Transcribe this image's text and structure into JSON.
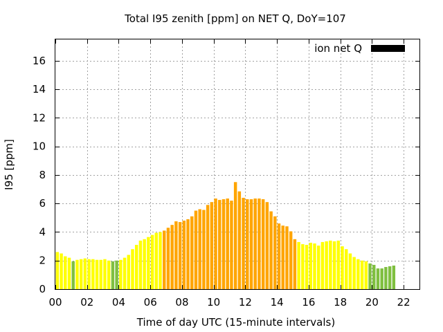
{
  "chart_data": {
    "type": "bar",
    "title": "Total I95 zenith [ppm] on NET Q, DoY=107",
    "xlabel": "Time of day UTC (15-minute intervals)",
    "ylabel": "I95 [ppm]",
    "xlim": [
      0,
      23
    ],
    "ylim": [
      0,
      17.5
    ],
    "x_ticks": [
      "00",
      "02",
      "04",
      "06",
      "08",
      "10",
      "12",
      "14",
      "16",
      "18",
      "20",
      "22"
    ],
    "y_ticks": [
      "0",
      "2",
      "4",
      "6",
      "8",
      "10",
      "12",
      "14",
      "16"
    ],
    "grid": true,
    "legend": {
      "placement": "top-right",
      "entries": [
        {
          "name": "ion net Q",
          "color": "#000000"
        }
      ]
    },
    "bar_colors": {
      "green": "#7fbf3f",
      "yellow": "#ffff00",
      "orange": "#ffa500"
    },
    "interval_hours": 0.25,
    "values": [
      2.6,
      2.5,
      2.3,
      2.2,
      1.95,
      2.05,
      2.1,
      2.15,
      2.1,
      2.1,
      2.05,
      2.05,
      2.1,
      2.0,
      1.95,
      2.0,
      2.05,
      2.2,
      2.4,
      2.8,
      3.1,
      3.4,
      3.5,
      3.65,
      3.8,
      3.95,
      4.0,
      4.1,
      4.3,
      4.5,
      4.75,
      4.7,
      4.8,
      4.9,
      5.1,
      5.5,
      5.6,
      5.55,
      5.9,
      6.1,
      6.35,
      6.25,
      6.3,
      6.35,
      6.2,
      7.5,
      6.85,
      6.4,
      6.3,
      6.3,
      6.35,
      6.35,
      6.3,
      6.1,
      5.45,
      5.1,
      4.6,
      4.45,
      4.4,
      4.05,
      3.5,
      3.3,
      3.15,
      3.1,
      3.25,
      3.2,
      3.05,
      3.3,
      3.35,
      3.4,
      3.35,
      3.4,
      3.0,
      2.8,
      2.5,
      2.25,
      2.1,
      2.0,
      1.95,
      1.8,
      1.7,
      1.45,
      1.45,
      1.55,
      1.6,
      1.65
    ],
    "colors": [
      "yellow",
      "yellow",
      "yellow",
      "yellow",
      "green",
      "yellow",
      "yellow",
      "yellow",
      "yellow",
      "yellow",
      "yellow",
      "yellow",
      "yellow",
      "yellow",
      "green",
      "green",
      "yellow",
      "yellow",
      "yellow",
      "yellow",
      "yellow",
      "yellow",
      "yellow",
      "yellow",
      "yellow",
      "yellow",
      "yellow",
      "orange",
      "orange",
      "orange",
      "orange",
      "orange",
      "orange",
      "orange",
      "orange",
      "orange",
      "orange",
      "orange",
      "orange",
      "orange",
      "orange",
      "orange",
      "orange",
      "orange",
      "orange",
      "orange",
      "orange",
      "orange",
      "orange",
      "orange",
      "orange",
      "orange",
      "orange",
      "orange",
      "orange",
      "orange",
      "orange",
      "orange",
      "orange",
      "orange",
      "orange",
      "yellow",
      "yellow",
      "yellow",
      "yellow",
      "yellow",
      "yellow",
      "yellow",
      "yellow",
      "yellow",
      "yellow",
      "yellow",
      "yellow",
      "yellow",
      "yellow",
      "yellow",
      "yellow",
      "yellow",
      "yellow",
      "green",
      "green",
      "green",
      "green",
      "green",
      "green",
      "green"
    ]
  }
}
